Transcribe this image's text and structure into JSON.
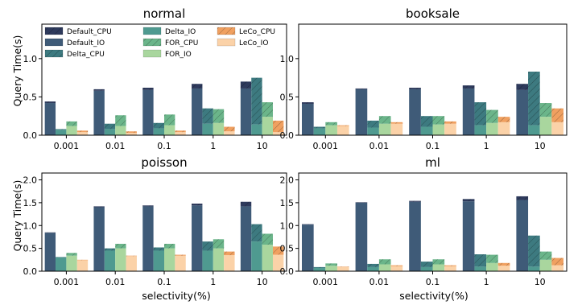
{
  "figure": {
    "ylabel": "Query Time(s)",
    "xlabel": "selectivity(%)"
  },
  "legend": [
    {
      "name": "Default_CPU",
      "color": "#2e3a5c",
      "hatch": true
    },
    {
      "name": "Default_IO",
      "color": "#3f5b78",
      "hatch": false
    },
    {
      "name": "Delta_CPU",
      "color": "#3d7a80",
      "hatch": true
    },
    {
      "name": "Delta_IO",
      "color": "#4f9a90",
      "hatch": false
    },
    {
      "name": "FOR_CPU",
      "color": "#6bb58a",
      "hatch": true
    },
    {
      "name": "FOR_IO",
      "color": "#a9d69e",
      "hatch": false
    },
    {
      "name": "LeCo_CPU",
      "color": "#f0a060",
      "hatch": true
    },
    {
      "name": "LeCo_IO",
      "color": "#fbd2a8",
      "hatch": false
    }
  ],
  "colors": {
    "default_cpu": "#2e3a5c",
    "default_io": "#3f5b78",
    "delta_cpu": "#3d7a80",
    "delta_io": "#4f9a90",
    "for_cpu": "#6bb58a",
    "for_io": "#a9d69e",
    "leco_cpu": "#f0a060",
    "leco_io": "#fbd2a8"
  },
  "chart_data": [
    {
      "type": "bar",
      "title": "normal",
      "categories": [
        "0.001",
        "0.01",
        "0.1",
        "1",
        "10"
      ],
      "ylim": [
        0,
        1.45
      ],
      "yticks": [
        "0.0",
        "0.5",
        "1.0"
      ],
      "ytick_values": [
        0,
        0.5,
        1.0
      ],
      "series": [
        {
          "name": "Default",
          "io": [
            0.42,
            0.58,
            0.59,
            0.61,
            0.61
          ],
          "cpu": [
            0.02,
            0.02,
            0.03,
            0.06,
            0.09
          ]
        },
        {
          "name": "Delta",
          "io": [
            0.07,
            0.08,
            0.09,
            0.15,
            0.14
          ],
          "cpu": [
            0.01,
            0.07,
            0.07,
            0.2,
            0.61
          ]
        },
        {
          "name": "FOR",
          "io": [
            0.12,
            0.12,
            0.13,
            0.16,
            0.24
          ],
          "cpu": [
            0.06,
            0.14,
            0.14,
            0.18,
            0.19
          ]
        },
        {
          "name": "LeCo",
          "io": [
            0.04,
            0.03,
            0.04,
            0.05,
            0.04
          ],
          "cpu": [
            0.02,
            0.02,
            0.02,
            0.06,
            0.15
          ]
        }
      ]
    },
    {
      "type": "bar",
      "title": "booksale",
      "categories": [
        "0.001",
        "0.01",
        "0.1",
        "1",
        "10"
      ],
      "ylim": [
        0,
        1.45
      ],
      "yticks": [
        "0.0",
        "0.5",
        "1.0"
      ],
      "ytick_values": [
        0,
        0.5,
        1.0
      ],
      "series": [
        {
          "name": "Default",
          "io": [
            0.41,
            0.6,
            0.6,
            0.61,
            0.59
          ],
          "cpu": [
            0.02,
            0.01,
            0.02,
            0.04,
            0.08
          ]
        },
        {
          "name": "Delta",
          "io": [
            0.09,
            0.1,
            0.11,
            0.13,
            0.13
          ],
          "cpu": [
            0.02,
            0.09,
            0.14,
            0.3,
            0.7
          ]
        },
        {
          "name": "FOR",
          "io": [
            0.13,
            0.15,
            0.14,
            0.16,
            0.24
          ],
          "cpu": [
            0.04,
            0.1,
            0.11,
            0.17,
            0.18
          ]
        },
        {
          "name": "LeCo",
          "io": [
            0.12,
            0.15,
            0.15,
            0.17,
            0.17
          ],
          "cpu": [
            0.01,
            0.02,
            0.03,
            0.07,
            0.18
          ]
        }
      ]
    },
    {
      "type": "bar",
      "title": "poisson",
      "categories": [
        "0.001",
        "0.01",
        "0.1",
        "1",
        "10"
      ],
      "ylim": [
        0,
        2.15
      ],
      "yticks": [
        "0.0",
        "0.5",
        "1.0",
        "1.5",
        "2.0"
      ],
      "ytick_values": [
        0,
        0.5,
        1.0,
        1.5,
        2.0
      ],
      "series": [
        {
          "name": "Default",
          "io": [
            0.84,
            1.4,
            1.42,
            1.44,
            1.42
          ],
          "cpu": [
            0.01,
            0.02,
            0.02,
            0.04,
            0.1
          ]
        },
        {
          "name": "Delta",
          "io": [
            0.3,
            0.45,
            0.45,
            0.45,
            0.65
          ],
          "cpu": [
            0.01,
            0.05,
            0.07,
            0.2,
            0.38
          ]
        },
        {
          "name": "FOR",
          "io": [
            0.34,
            0.5,
            0.5,
            0.5,
            0.58
          ],
          "cpu": [
            0.06,
            0.1,
            0.1,
            0.2,
            0.24
          ]
        },
        {
          "name": "LeCo",
          "io": [
            0.24,
            0.33,
            0.34,
            0.35,
            0.36
          ],
          "cpu": [
            0.01,
            0.01,
            0.02,
            0.08,
            0.18
          ]
        }
      ]
    },
    {
      "type": "bar",
      "title": "ml",
      "categories": [
        "0.001",
        "0.01",
        "0.1",
        "1",
        "10"
      ],
      "ylim": [
        0,
        2.15
      ],
      "yticks": [
        "0.0",
        "0.5",
        "1.0",
        "1.5",
        "2.0"
      ],
      "ytick_values": [
        0,
        0.5,
        1.0,
        1.5,
        2.0
      ],
      "series": [
        {
          "name": "Default",
          "io": [
            1.02,
            1.5,
            1.52,
            1.53,
            1.56
          ],
          "cpu": [
            0.01,
            0.01,
            0.02,
            0.05,
            0.08
          ]
        },
        {
          "name": "Delta",
          "io": [
            0.07,
            0.09,
            0.09,
            0.1,
            0.1
          ],
          "cpu": [
            0.02,
            0.07,
            0.12,
            0.27,
            0.68
          ]
        },
        {
          "name": "FOR",
          "io": [
            0.12,
            0.15,
            0.15,
            0.18,
            0.25
          ],
          "cpu": [
            0.05,
            0.11,
            0.11,
            0.18,
            0.18
          ]
        },
        {
          "name": "LeCo",
          "io": [
            0.09,
            0.11,
            0.11,
            0.12,
            0.13
          ],
          "cpu": [
            0.01,
            0.02,
            0.02,
            0.06,
            0.16
          ]
        }
      ]
    }
  ]
}
